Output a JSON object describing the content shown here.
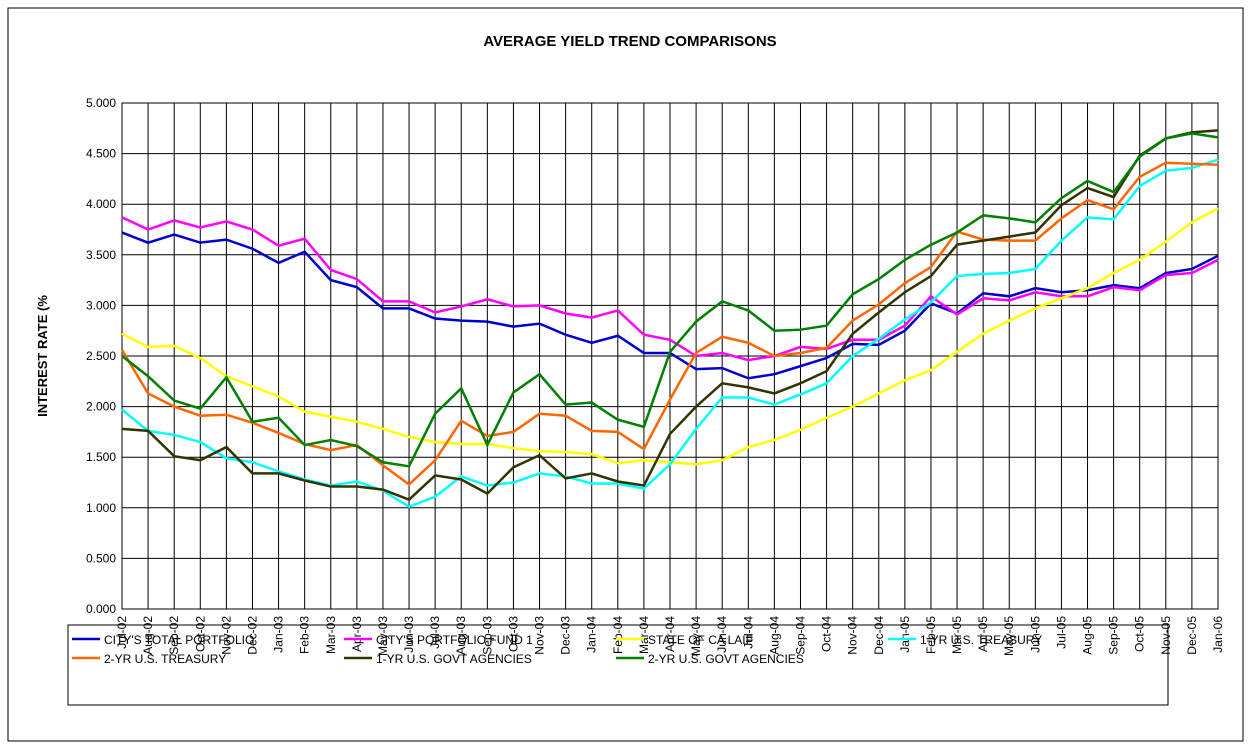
{
  "chart_data": {
    "type": "line",
    "title": "AVERAGE YIELD TREND COMPARISONS",
    "y_label": "INTEREST RATE (%",
    "categories": [
      "Jul-02",
      "Aug-02",
      "Sep-02",
      "Oct-02",
      "Nov-02",
      "Dec-02",
      "Jan-03",
      "Feb-03",
      "Mar-03",
      "Apr-03",
      "May-03",
      "Jun-03",
      "Jul-03",
      "Aug-03",
      "Sep-03",
      "Oct-03",
      "Nov-03",
      "Dec-03",
      "Jan-04",
      "Feb-04",
      "Mar-04",
      "Apr-04",
      "May-04",
      "Jun-04",
      "Jul-04",
      "Aug-04",
      "Sep-04",
      "Oct-04",
      "Nov-04",
      "Dec-04",
      "Jan-05",
      "Feb-05",
      "Mar-05",
      "Apr-05",
      "May-05",
      "Jun-05",
      "Jul-05",
      "Aug-05",
      "Sep-05",
      "Oct-05",
      "Nov-05",
      "Dec-05",
      "Jan-06"
    ],
    "ylim": [
      0,
      5
    ],
    "yticks": [
      {
        "value": 0,
        "label": "0.000"
      },
      {
        "value": 0.5,
        "label": "0.500"
      },
      {
        "value": 1,
        "label": "1.000"
      },
      {
        "value": 1.5,
        "label": "1.500"
      },
      {
        "value": 2,
        "label": "2.000"
      },
      {
        "value": 2.5,
        "label": "2.500"
      },
      {
        "value": 3,
        "label": "3.000"
      },
      {
        "value": 3.5,
        "label": "3.500"
      },
      {
        "value": 4,
        "label": "4.000"
      },
      {
        "value": 4.5,
        "label": "4.500"
      },
      {
        "value": 5,
        "label": "5.000"
      }
    ],
    "grid": true,
    "legend": "bottom",
    "series": [
      {
        "name": "CITY'S TOTAL PORTFOLIO",
        "color": "#0000cc",
        "values": [
          3.72,
          3.62,
          3.7,
          3.62,
          3.65,
          3.56,
          3.42,
          3.53,
          3.25,
          3.18,
          2.97,
          2.97,
          2.87,
          2.85,
          2.84,
          2.79,
          2.82,
          2.71,
          2.63,
          2.7,
          2.53,
          2.53,
          2.37,
          2.38,
          2.28,
          2.32,
          2.4,
          2.48,
          2.62,
          2.61,
          2.75,
          3.02,
          2.92,
          3.12,
          3.09,
          3.17,
          3.13,
          3.15,
          3.2,
          3.17,
          3.32,
          3.36,
          3.49
        ]
      },
      {
        "name": "CITY'S PORTFOLIO FUND 1",
        "color": "#ff00ff",
        "values": [
          3.87,
          3.75,
          3.84,
          3.77,
          3.83,
          3.75,
          3.59,
          3.66,
          3.35,
          3.26,
          3.04,
          3.04,
          2.93,
          2.99,
          3.06,
          2.99,
          3.0,
          2.92,
          2.88,
          2.95,
          2.71,
          2.66,
          2.5,
          2.53,
          2.46,
          2.5,
          2.59,
          2.57,
          2.66,
          2.66,
          2.8,
          3.09,
          2.91,
          3.07,
          3.05,
          3.13,
          3.09,
          3.09,
          3.18,
          3.15,
          3.3,
          3.32,
          3.45
        ]
      },
      {
        "name": "STATE OF CA LAIF",
        "color": "#ffff00",
        "values": [
          2.72,
          2.59,
          2.6,
          2.48,
          2.3,
          2.2,
          2.1,
          1.95,
          1.9,
          1.85,
          1.78,
          1.7,
          1.65,
          1.63,
          1.63,
          1.59,
          1.56,
          1.55,
          1.53,
          1.44,
          1.47,
          1.45,
          1.43,
          1.47,
          1.6,
          1.67,
          1.77,
          1.89,
          2.0,
          2.13,
          2.26,
          2.36,
          2.54,
          2.72,
          2.85,
          2.97,
          3.07,
          3.17,
          3.32,
          3.45,
          3.63,
          3.82,
          3.96
        ]
      },
      {
        "name": "1-YR U.S. TREASURY",
        "color": "#00ffff",
        "values": [
          1.97,
          1.76,
          1.72,
          1.65,
          1.49,
          1.45,
          1.36,
          1.28,
          1.22,
          1.26,
          1.17,
          1.01,
          1.11,
          1.31,
          1.22,
          1.25,
          1.34,
          1.31,
          1.24,
          1.24,
          1.19,
          1.43,
          1.78,
          2.09,
          2.09,
          2.02,
          2.12,
          2.23,
          2.5,
          2.67,
          2.86,
          3.03,
          3.29,
          3.31,
          3.32,
          3.36,
          3.64,
          3.87,
          3.85,
          4.18,
          4.33,
          4.36,
          4.44
        ]
      },
      {
        "name": "2-YR U.S. TREASURY",
        "color": "#ff6600",
        "values": [
          2.56,
          2.13,
          2.0,
          1.91,
          1.92,
          1.84,
          1.74,
          1.63,
          1.57,
          1.62,
          1.42,
          1.23,
          1.47,
          1.86,
          1.71,
          1.75,
          1.93,
          1.91,
          1.76,
          1.75,
          1.58,
          2.07,
          2.53,
          2.69,
          2.63,
          2.5,
          2.53,
          2.58,
          2.85,
          3.01,
          3.22,
          3.38,
          3.73,
          3.65,
          3.64,
          3.64,
          3.86,
          4.04,
          3.95,
          4.27,
          4.41,
          4.4,
          4.39
        ]
      },
      {
        "name": "1-YR U.S. GOVT AGENCIES",
        "color": "#333300",
        "values": [
          1.78,
          1.76,
          1.51,
          1.47,
          1.6,
          1.34,
          1.34,
          1.27,
          1.21,
          1.21,
          1.18,
          1.08,
          1.32,
          1.28,
          1.14,
          1.4,
          1.52,
          1.29,
          1.34,
          1.26,
          1.22,
          1.73,
          2.0,
          2.23,
          2.19,
          2.13,
          2.23,
          2.35,
          2.72,
          2.93,
          3.13,
          3.29,
          3.6,
          3.64,
          3.68,
          3.72,
          3.99,
          4.16,
          4.07,
          4.48,
          4.65,
          4.71,
          4.73
        ]
      },
      {
        "name": "2-YR U.S. GOVT AGENCIES",
        "color": "#008000",
        "values": [
          2.5,
          2.3,
          2.06,
          1.98,
          2.29,
          1.85,
          1.89,
          1.62,
          1.67,
          1.61,
          1.45,
          1.41,
          1.93,
          2.18,
          1.62,
          2.14,
          2.32,
          2.02,
          2.04,
          1.87,
          1.8,
          2.54,
          2.84,
          3.04,
          2.95,
          2.75,
          2.76,
          2.8,
          3.11,
          3.26,
          3.45,
          3.6,
          3.72,
          3.89,
          3.86,
          3.82,
          4.06,
          4.23,
          4.12,
          4.47,
          4.65,
          4.7,
          4.66
        ]
      }
    ]
  }
}
